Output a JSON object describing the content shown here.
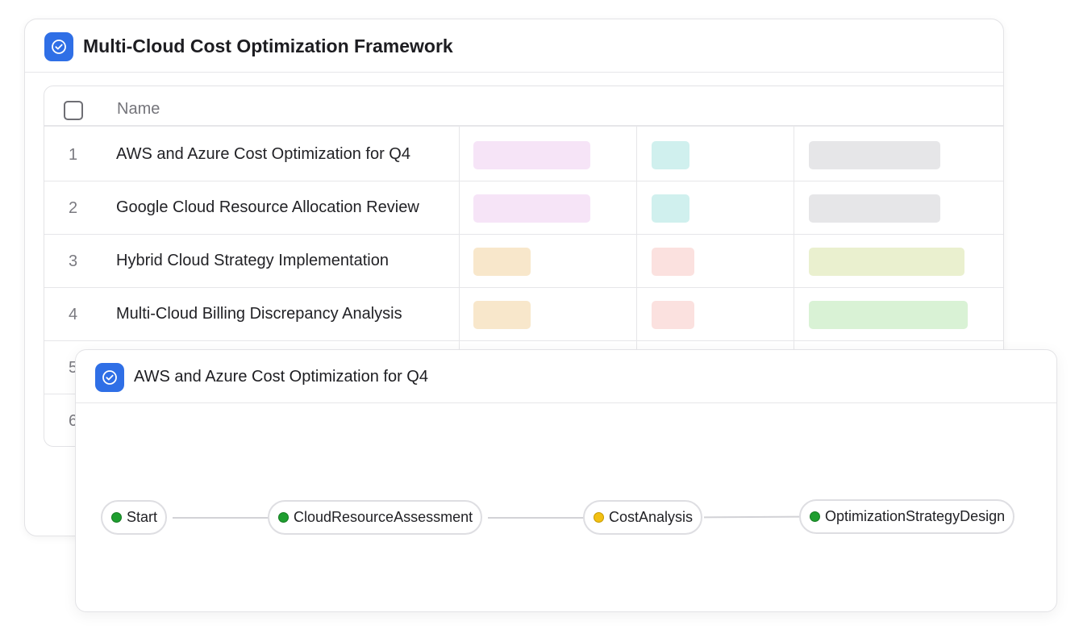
{
  "back_card": {
    "title": "Multi-Cloud Cost Optimization Framework",
    "icon": "check-circle-icon",
    "table": {
      "header_name": "Name",
      "rows": [
        {
          "num": "1",
          "name": "AWS and Azure Cost Optimization for Q4"
        },
        {
          "num": "2",
          "name": "Google Cloud Resource Allocation Review"
        },
        {
          "num": "3",
          "name": "Hybrid Cloud Strategy Implementation"
        },
        {
          "num": "4",
          "name": "Multi-Cloud Billing Discrepancy Analysis"
        },
        {
          "num": "5",
          "name": ""
        },
        {
          "num": "6",
          "name": ""
        }
      ],
      "pill_colors": [
        "#f6e4f7",
        "#d0f0ee",
        "#e6e6e8",
        "#f8e7cb",
        "#fbe1df",
        "#eaf0cf",
        "#d9f2d5"
      ]
    }
  },
  "front_card": {
    "title": "AWS and Azure Cost Optimization for Q4",
    "icon": "check-circle-icon",
    "flow": {
      "nodes": [
        {
          "label": "Start",
          "status": "green"
        },
        {
          "label": "CloudResourceAssessment",
          "status": "green"
        },
        {
          "label": "CostAnalysis",
          "status": "yellow"
        },
        {
          "label": "OptimizationStrategyDesign",
          "status": "green"
        }
      ]
    }
  },
  "colors": {
    "accent": "#2f6fe6",
    "status_green": "#1e9e2f",
    "status_yellow": "#f2c012"
  }
}
